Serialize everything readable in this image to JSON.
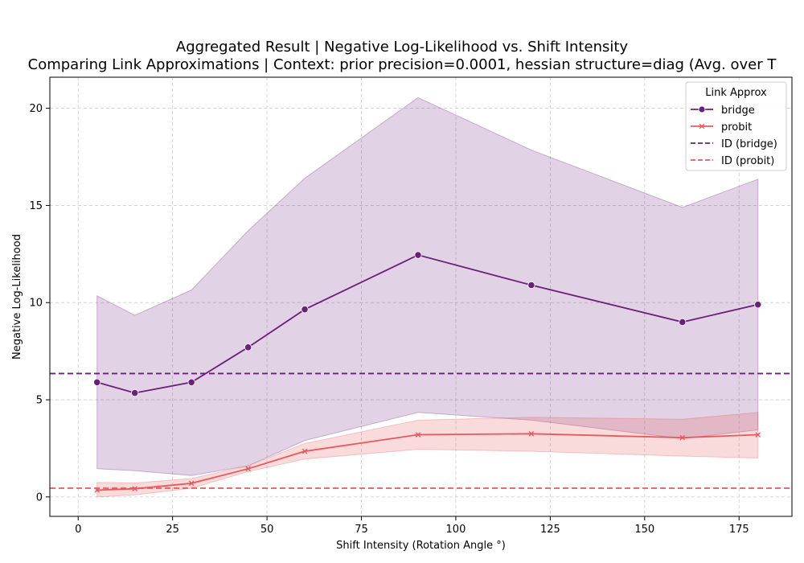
{
  "chart_data": {
    "type": "line",
    "title": "Aggregated Result | Negative Log-Likelihood vs. Shift Intensity",
    "subtitle": "Comparing Link Approximations | Context: prior precision=0.0001, hessian structure=diag (Avg. over T",
    "xlabel": "Shift Intensity (Rotation Angle °)",
    "ylabel": "Negative Log-Likelihood",
    "xlim": [
      -7.5,
      189
    ],
    "ylim": [
      -1.0,
      21.6
    ],
    "xticks": [
      0,
      25,
      50,
      75,
      100,
      125,
      150,
      175
    ],
    "yticks": [
      0,
      5,
      10,
      15,
      20
    ],
    "grid": true,
    "legend": {
      "title": "Link Approx",
      "placement": "top-right"
    },
    "x": [
      5,
      15,
      30,
      45,
      60,
      90,
      120,
      160,
      180
    ],
    "series": [
      {
        "name": "bridge",
        "color": "#6b1f7b",
        "marker": "circle",
        "values": [
          5.9,
          5.35,
          5.9,
          7.7,
          9.65,
          12.45,
          10.9,
          9.0,
          9.9
        ],
        "band_upper": [
          10.35,
          9.35,
          10.65,
          13.7,
          16.4,
          20.55,
          17.85,
          14.9,
          16.35
        ],
        "band_lower": [
          1.45,
          1.35,
          1.1,
          1.6,
          2.9,
          4.35,
          3.95,
          3.0,
          3.45
        ]
      },
      {
        "name": "probit",
        "color": "#e8595b",
        "marker": "x",
        "values": [
          0.35,
          0.42,
          0.7,
          1.45,
          2.35,
          3.2,
          3.25,
          3.05,
          3.2
        ],
        "band_upper": [
          0.75,
          0.72,
          0.95,
          1.6,
          2.75,
          3.95,
          4.1,
          4.0,
          4.35
        ],
        "band_lower": [
          0.0,
          0.1,
          0.45,
          1.3,
          1.95,
          2.45,
          2.35,
          2.1,
          2.0
        ]
      }
    ],
    "reference_lines": [
      {
        "name": "ID (bridge)",
        "y": 6.35,
        "color": "#6b1f7b",
        "style": "dashed"
      },
      {
        "name": "ID (probit)",
        "y": 0.45,
        "color": "#e8595b",
        "style": "dashed"
      }
    ]
  }
}
